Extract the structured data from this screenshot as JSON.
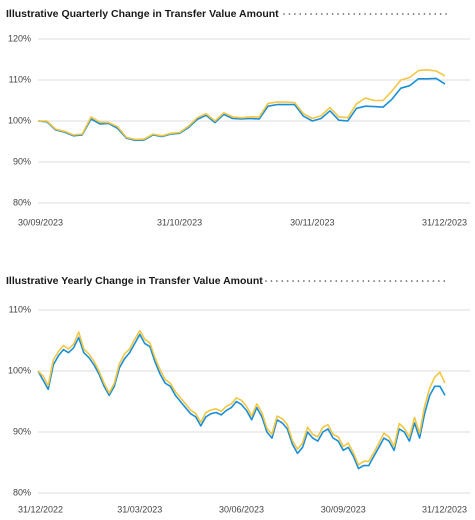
{
  "chart_data": [
    {
      "type": "line",
      "title": "Illustrative Quarterly Change in Transfer Value Amount",
      "categories": [
        "30/09/2023",
        null,
        null,
        null,
        null,
        null,
        null,
        null,
        null,
        null,
        null,
        null,
        null,
        null,
        null,
        null,
        "31/10/2023",
        null,
        null,
        null,
        null,
        null,
        null,
        null,
        null,
        null,
        null,
        null,
        null,
        null,
        null,
        "30/11/2023",
        null,
        null,
        null,
        null,
        null,
        null,
        null,
        null,
        null,
        null,
        null,
        null,
        null,
        null,
        "31/12/2023"
      ],
      "series": [
        {
          "color": "#1b8fd6",
          "values": [
            100,
            99.8,
            97.8,
            97.3,
            96.4,
            96.6,
            100.5,
            99.3,
            99.4,
            98.2,
            95.8,
            95.3,
            95.4,
            96.6,
            96.2,
            96.8,
            97,
            98.4,
            100.4,
            101.4,
            99.6,
            101.6,
            100.6,
            100.5,
            100.6,
            100.5,
            103.6,
            104,
            104,
            104,
            101.2,
            100,
            100.6,
            102.5,
            100.2,
            100,
            103.1,
            103.6,
            103.5,
            103.4,
            105.3,
            108,
            108.6,
            110.3,
            110.3,
            110.4,
            109
          ]
        },
        {
          "color": "#f2c744",
          "values": [
            100,
            100,
            98,
            97.5,
            96.6,
            96.8,
            101,
            99.7,
            99.6,
            98.6,
            96,
            95.5,
            95.6,
            96.8,
            96.4,
            97,
            97.2,
            98.7,
            100.8,
            101.8,
            100,
            102,
            101,
            100.8,
            101,
            101,
            104.3,
            104.6,
            104.6,
            104.5,
            101.8,
            100.6,
            101.3,
            103.3,
            101,
            100.8,
            104.2,
            105.6,
            105,
            105,
            107.3,
            110,
            110.6,
            112.3,
            112.5,
            112.2,
            111
          ]
        }
      ],
      "ylim": [
        80,
        120
      ],
      "yticks": [
        {
          "value": 80,
          "label": "80%"
        },
        {
          "value": 90,
          "label": "90%"
        },
        {
          "value": 100,
          "label": "100%"
        },
        {
          "value": 110,
          "label": "110%"
        },
        {
          "value": 120,
          "label": "120%"
        }
      ],
      "grid": true
    },
    {
      "type": "line",
      "title": "Illustrative Yearly Change in Transfer Value Amount",
      "categories": [
        "31/12/2022",
        null,
        null,
        null,
        null,
        null,
        null,
        null,
        null,
        null,
        null,
        null,
        null,
        null,
        null,
        null,
        null,
        null,
        null,
        null,
        "31/03/2023",
        null,
        null,
        null,
        null,
        null,
        null,
        null,
        null,
        null,
        null,
        null,
        null,
        null,
        null,
        null,
        null,
        null,
        null,
        null,
        "30/06/2023",
        null,
        null,
        null,
        null,
        null,
        null,
        null,
        null,
        null,
        null,
        null,
        null,
        null,
        null,
        null,
        null,
        null,
        null,
        null,
        "30/09/2023",
        null,
        null,
        null,
        null,
        null,
        null,
        null,
        null,
        null,
        null,
        null,
        null,
        null,
        null,
        null,
        null,
        null,
        null,
        null,
        "31/12/2023"
      ],
      "series": [
        {
          "color": "#1b8fd6",
          "values": [
            100,
            98.5,
            97,
            101,
            102.5,
            103.5,
            103,
            103.8,
            105.5,
            103,
            102.2,
            101,
            99.5,
            97.5,
            96,
            97.5,
            100.5,
            102,
            103,
            104.5,
            106,
            104.5,
            104,
            101.5,
            99.5,
            98,
            97.5,
            96,
            95,
            94,
            93,
            92.5,
            91,
            92.5,
            93,
            93.2,
            92.8,
            93.5,
            94,
            95,
            94.5,
            93.5,
            92,
            94,
            92.5,
            90,
            89,
            92,
            91.5,
            90.5,
            88,
            86.5,
            87.5,
            90,
            89,
            88.5,
            90,
            90.5,
            89,
            88.5,
            87,
            87.5,
            86,
            84,
            84.5,
            84.5,
            86,
            87.5,
            89,
            88.5,
            87,
            90.5,
            90,
            88.5,
            91.5,
            89,
            93,
            96,
            97.5,
            97.5,
            96
          ]
        },
        {
          "color": "#f2c744",
          "values": [
            100,
            99.2,
            97.6,
            101.8,
            103.2,
            104.2,
            103.6,
            104.4,
            106.4,
            103.6,
            102.8,
            101.6,
            100,
            98,
            96.4,
            98,
            101.2,
            102.8,
            103.6,
            105.2,
            106.6,
            105.2,
            104.6,
            102.2,
            100.2,
            98.6,
            98,
            96.6,
            95.6,
            94.6,
            93.6,
            93,
            91.6,
            93.2,
            93.6,
            93.8,
            93.4,
            94.2,
            94.6,
            95.6,
            95.2,
            94.2,
            92.6,
            94.6,
            93.2,
            90.6,
            89.6,
            92.6,
            92.2,
            91.2,
            88.6,
            87.2,
            88.2,
            90.8,
            89.6,
            89.2,
            90.8,
            91.2,
            89.6,
            89.2,
            87.6,
            88.2,
            86.6,
            84.6,
            85.2,
            85.2,
            86.6,
            88.2,
            89.8,
            89.2,
            87.6,
            91.4,
            90.6,
            89.2,
            92.4,
            89.8,
            94.2,
            97.2,
            99,
            99.8,
            98
          ]
        }
      ],
      "ylim": [
        80,
        110
      ],
      "yticks": [
        {
          "value": 80,
          "label": "80%"
        },
        {
          "value": 90,
          "label": "90%"
        },
        {
          "value": 100,
          "label": "100%"
        },
        {
          "value": 110,
          "label": "110%"
        }
      ],
      "grid": true
    }
  ]
}
